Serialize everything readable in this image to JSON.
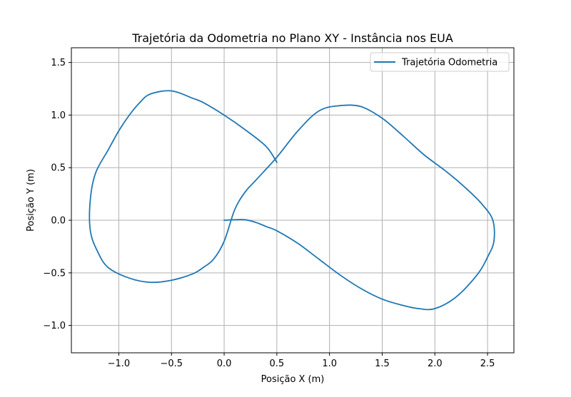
{
  "chart_data": {
    "type": "line",
    "title": "Trajetória da Odometria no Plano XY - Instância nos EUA",
    "xlabel": "Posição X (m)",
    "ylabel": "Posição Y (m)",
    "xlim": [
      -1.45,
      2.75
    ],
    "ylim": [
      -1.26,
      1.64
    ],
    "xticks": [
      -1.0,
      -0.5,
      0.0,
      0.5,
      1.0,
      1.5,
      2.0,
      2.5
    ],
    "xtick_labels": [
      "−1.0",
      "−0.5",
      "0.0",
      "0.5",
      "1.0",
      "1.5",
      "2.0",
      "2.5"
    ],
    "yticks": [
      -1.0,
      -0.5,
      0.0,
      0.5,
      1.0,
      1.5
    ],
    "ytick_labels": [
      "−1.0",
      "−0.5",
      "0.0",
      "0.5",
      "1.0",
      "1.5"
    ],
    "grid": true,
    "legend_position": "top-right",
    "series": [
      {
        "name": "Trajetória Odometria",
        "color": "#1f77b4",
        "x": [
          0.0,
          0.1,
          0.2,
          0.3,
          0.4,
          0.5,
          0.7,
          0.9,
          1.1,
          1.3,
          1.5,
          1.7,
          1.85,
          2.0,
          2.2,
          2.4,
          2.5,
          2.56,
          2.55,
          2.45,
          2.3,
          2.1,
          1.9,
          1.7,
          1.5,
          1.3,
          1.1,
          0.9,
          0.7,
          0.5,
          0.3,
          0.2,
          0.1,
          0.0,
          -0.1,
          -0.2,
          -0.3,
          -0.5,
          -0.7,
          -0.9,
          -1.1,
          -1.2,
          -1.27,
          -1.27,
          -1.22,
          -1.1,
          -1.0,
          -0.9,
          -0.8,
          -0.7,
          -0.5,
          -0.3,
          -0.2,
          0.0,
          0.2,
          0.4,
          0.5
        ],
        "y": [
          0.0,
          0.005,
          0.005,
          -0.02,
          -0.06,
          -0.1,
          -0.22,
          -0.37,
          -0.52,
          -0.65,
          -0.75,
          -0.81,
          -0.84,
          -0.84,
          -0.73,
          -0.52,
          -0.35,
          -0.2,
          0.0,
          0.15,
          0.3,
          0.47,
          0.62,
          0.8,
          0.97,
          1.08,
          1.09,
          1.04,
          0.85,
          0.6,
          0.38,
          0.27,
          0.1,
          -0.2,
          -0.37,
          -0.45,
          -0.51,
          -0.57,
          -0.59,
          -0.55,
          -0.45,
          -0.3,
          -0.1,
          0.2,
          0.45,
          0.67,
          0.85,
          1.0,
          1.12,
          1.2,
          1.23,
          1.16,
          1.12,
          1.0,
          0.86,
          0.7,
          0.55
        ]
      }
    ]
  }
}
